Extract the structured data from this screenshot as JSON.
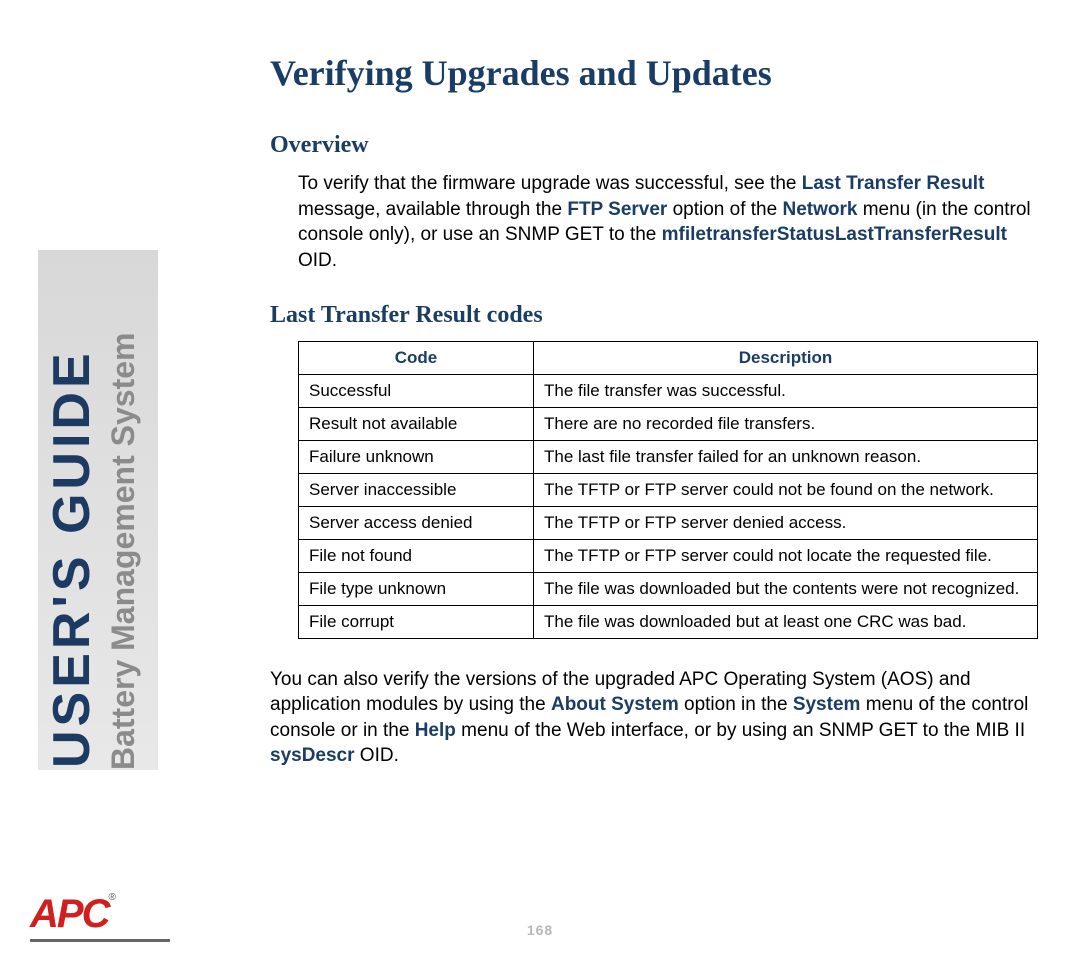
{
  "sidebar": {
    "main": "USER'S GUIDE",
    "sub": "Battery Management System"
  },
  "logo": {
    "brand": "APC",
    "reg": "®"
  },
  "page": {
    "title": "Verifying Upgrades and Updates",
    "number": "168"
  },
  "overview": {
    "heading": "Overview",
    "p1_a": "To verify that the firmware upgrade was successful, see the ",
    "p1_b": "Last Transfer Result",
    "p1_c": " message, available through the ",
    "p1_d": "FTP Server",
    "p1_e": " option of the ",
    "p1_f": "Network",
    "p1_g": " menu (in the control console only), or use an SNMP GET to the ",
    "p1_h": "mfiletransferStatusLastTransferResult",
    "p1_i": " OID."
  },
  "codes": {
    "heading": "Last Transfer Result codes",
    "col1": "Code",
    "col2": "Description",
    "rows": [
      {
        "code": "Successful",
        "desc": "The file transfer was successful."
      },
      {
        "code": "Result not available",
        "desc": "There are no recorded file transfers."
      },
      {
        "code": "Failure unknown",
        "desc": "The last file transfer failed for an unknown reason."
      },
      {
        "code": "Server inaccessible",
        "desc": "The TFTP or FTP server could not be found on the network."
      },
      {
        "code": "Server access denied",
        "desc": "The TFTP or FTP server denied access."
      },
      {
        "code": "File not found",
        "desc": "The TFTP or FTP server could not locate the requested file."
      },
      {
        "code": "File type unknown",
        "desc": "The file was downloaded but the contents were not recognized."
      },
      {
        "code": "File corrupt",
        "desc": "The file was downloaded but at least one CRC was bad."
      }
    ]
  },
  "footer_para": {
    "a": "You can also verify the versions of the upgraded APC Operating System (AOS) and application modules by using the ",
    "b": "About System",
    "c": " option in the ",
    "d": "System",
    "e": " menu of the control console or in the ",
    "f": "Help",
    "g": " menu of the Web interface, or by using an SNMP GET to the MIB II ",
    "h": "sysDescr",
    "i": " OID."
  },
  "colors": {
    "heading": "#1a3d66",
    "body": "#000000",
    "sidebar_main": "#1d3a63",
    "sidebar_sub": "#8b8b8b",
    "logo": "#d11f1f",
    "page_num": "#b8b8b8"
  }
}
